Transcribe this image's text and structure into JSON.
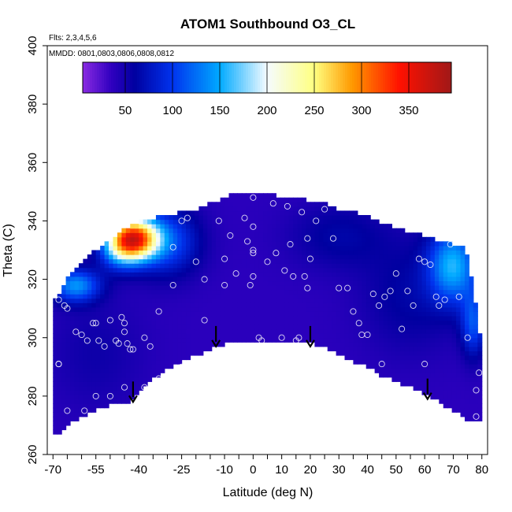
{
  "chart_data": {
    "type": "heatmap",
    "title": "ATOM1 Southbound O3_CL",
    "annotations": {
      "flights": "Flts: 2,3,4,5,6",
      "dates": "MMDD: 0801,0803,0806,0808,0812"
    },
    "xlabel": "Latitude (deg N)",
    "ylabel": "Theta (C)",
    "xlim": [
      -72,
      82
    ],
    "ylim": [
      260,
      400
    ],
    "x_ticks": [
      -70,
      -55,
      -40,
      -25,
      -10,
      0,
      10,
      20,
      30,
      40,
      50,
      60,
      70,
      80
    ],
    "y_ticks": [
      260,
      280,
      300,
      320,
      340,
      360,
      380,
      400
    ],
    "colorbar": {
      "range": [
        5,
        395
      ],
      "ticks": [
        50,
        100,
        150,
        200,
        250,
        300,
        350
      ],
      "stops": [
        {
          "value": 5,
          "color": "#8a2be2"
        },
        {
          "value": 35,
          "color": "#3000c0"
        },
        {
          "value": 60,
          "color": "#0000a0"
        },
        {
          "value": 100,
          "color": "#0033ee"
        },
        {
          "value": 150,
          "color": "#00aaff"
        },
        {
          "value": 200,
          "color": "#f5fbff"
        },
        {
          "value": 250,
          "color": "#ffff80"
        },
        {
          "value": 290,
          "color": "#ff9900"
        },
        {
          "value": 340,
          "color": "#ff1100"
        },
        {
          "value": 395,
          "color": "#a01818"
        }
      ]
    },
    "field": {
      "background": 38,
      "upper_boundary": [
        [
          -70,
          312
        ],
        [
          -65,
          320
        ],
        [
          -60,
          326
        ],
        [
          -55,
          330
        ],
        [
          -50,
          333
        ],
        [
          -45,
          337
        ],
        [
          -40,
          340
        ],
        [
          -35,
          341
        ],
        [
          -30,
          342
        ],
        [
          -25,
          343
        ],
        [
          -20,
          344
        ],
        [
          -15,
          346
        ],
        [
          -10,
          348
        ],
        [
          -5,
          350
        ],
        [
          0,
          350
        ],
        [
          5,
          350
        ],
        [
          10,
          348
        ],
        [
          15,
          348
        ],
        [
          20,
          347
        ],
        [
          25,
          346
        ],
        [
          30,
          344
        ],
        [
          35,
          343
        ],
        [
          40,
          342
        ],
        [
          45,
          339
        ],
        [
          50,
          338
        ],
        [
          55,
          336
        ],
        [
          60,
          335
        ],
        [
          65,
          333
        ],
        [
          70,
          332
        ],
        [
          74,
          331
        ],
        [
          76,
          323
        ],
        [
          78,
          310
        ],
        [
          80,
          296
        ]
      ],
      "lower_boundary": [
        [
          -70,
          266
        ],
        [
          -68,
          267
        ],
        [
          -65,
          270
        ],
        [
          -60,
          273
        ],
        [
          -55,
          275
        ],
        [
          -50,
          277
        ],
        [
          -45,
          277
        ],
        [
          -40,
          282
        ],
        [
          -35,
          286
        ],
        [
          -30,
          289
        ],
        [
          -25,
          292
        ],
        [
          -20,
          294
        ],
        [
          -15,
          296
        ],
        [
          -10,
          298
        ],
        [
          -5,
          299
        ],
        [
          0,
          299
        ],
        [
          5,
          299
        ],
        [
          10,
          299
        ],
        [
          15,
          299
        ],
        [
          20,
          298
        ],
        [
          25,
          297
        ],
        [
          30,
          294
        ],
        [
          35,
          292
        ],
        [
          40,
          290
        ],
        [
          45,
          287
        ],
        [
          50,
          285
        ],
        [
          55,
          283
        ],
        [
          60,
          281
        ],
        [
          65,
          278
        ],
        [
          70,
          275
        ],
        [
          75,
          272
        ],
        [
          80,
          272
        ]
      ],
      "blobs": [
        {
          "lat": -42,
          "theta": 334,
          "sx": 6,
          "sy": 5,
          "amp": 290
        },
        {
          "lat": -47,
          "theta": 330,
          "sx": 5,
          "sy": 5,
          "amp": 60
        },
        {
          "lat": -62,
          "theta": 318,
          "sx": 6,
          "sy": 4,
          "amp": 100
        },
        {
          "lat": -30,
          "theta": 333,
          "sx": 8,
          "sy": 8,
          "amp": 70
        },
        {
          "lat": 70,
          "theta": 325,
          "sx": 6,
          "sy": 9,
          "amp": 110
        },
        {
          "lat": 77,
          "theta": 305,
          "sx": 3,
          "sy": 8,
          "amp": 70
        },
        {
          "lat": 55,
          "theta": 315,
          "sx": 12,
          "sy": 14,
          "amp": 25
        },
        {
          "lat": 30,
          "theta": 335,
          "sx": 12,
          "sy": 8,
          "amp": 25
        },
        {
          "lat": -55,
          "theta": 295,
          "sx": 12,
          "sy": 14,
          "amp": 15
        }
      ]
    },
    "sample_points": [
      [
        -69,
        316
      ],
      [
        -68,
        313
      ],
      [
        -66,
        311
      ],
      [
        -65,
        310
      ],
      [
        -62,
        302
      ],
      [
        -60,
        301
      ],
      [
        -58,
        299
      ],
      [
        -56,
        305
      ],
      [
        -55,
        305
      ],
      [
        -54,
        299
      ],
      [
        -52,
        297
      ],
      [
        -50,
        306
      ],
      [
        -48,
        299
      ],
      [
        -47,
        298
      ],
      [
        -46,
        307
      ],
      [
        -45,
        305
      ],
      [
        -45,
        302
      ],
      [
        -44,
        298
      ],
      [
        -43,
        296
      ],
      [
        -42,
        296
      ],
      [
        -38,
        300
      ],
      [
        -36,
        297
      ],
      [
        -33,
        309
      ],
      [
        -28,
        318
      ],
      [
        -28,
        331
      ],
      [
        -25,
        340
      ],
      [
        -23,
        341
      ],
      [
        -20,
        326
      ],
      [
        -17,
        320
      ],
      [
        -17,
        306
      ],
      [
        -15,
        293
      ],
      [
        -12,
        340
      ],
      [
        -10,
        327
      ],
      [
        -10,
        318
      ],
      [
        -8,
        335
      ],
      [
        -6,
        322
      ],
      [
        -3,
        341
      ],
      [
        -2,
        333
      ],
      [
        -1,
        318
      ],
      [
        0,
        330
      ],
      [
        0,
        329
      ],
      [
        0,
        321
      ],
      [
        0,
        338
      ],
      [
        0,
        348
      ],
      [
        2,
        300
      ],
      [
        3,
        299
      ],
      [
        5,
        326
      ],
      [
        7,
        346
      ],
      [
        8,
        329
      ],
      [
        10,
        300
      ],
      [
        11,
        323
      ],
      [
        12,
        345
      ],
      [
        13,
        332
      ],
      [
        14,
        321
      ],
      [
        15,
        299
      ],
      [
        16,
        300
      ],
      [
        17,
        343
      ],
      [
        18,
        321
      ],
      [
        19,
        317
      ],
      [
        19,
        334
      ],
      [
        20,
        327
      ],
      [
        22,
        340
      ],
      [
        25,
        344
      ],
      [
        28,
        334
      ],
      [
        30,
        317
      ],
      [
        33,
        317
      ],
      [
        35,
        309
      ],
      [
        37,
        305
      ],
      [
        38,
        301
      ],
      [
        40,
        301
      ],
      [
        42,
        315
      ],
      [
        44,
        311
      ],
      [
        46,
        314
      ],
      [
        48,
        316
      ],
      [
        50,
        322
      ],
      [
        52,
        303
      ],
      [
        54,
        316
      ],
      [
        56,
        311
      ],
      [
        58,
        327
      ],
      [
        60,
        326
      ],
      [
        62,
        325
      ],
      [
        64,
        314
      ],
      [
        65,
        311
      ],
      [
        67,
        313
      ],
      [
        69,
        332
      ],
      [
        72,
        314
      ],
      [
        75,
        300
      ],
      [
        78,
        282
      ],
      [
        -65,
        275
      ],
      [
        -59,
        275
      ],
      [
        -55,
        280
      ],
      [
        -50,
        280
      ],
      [
        -45,
        283
      ],
      [
        -38,
        283
      ],
      [
        -33,
        286
      ],
      [
        -25,
        290
      ],
      [
        -68,
        291
      ],
      [
        -68,
        291
      ],
      [
        -15,
        290
      ],
      [
        -8,
        291
      ],
      [
        0,
        291
      ],
      [
        45,
        291
      ],
      [
        60,
        291
      ],
      [
        79,
        288
      ],
      [
        78,
        273
      ]
    ],
    "arrows": [
      {
        "lat": -42,
        "theta_from": 285,
        "theta_to": 278
      },
      {
        "lat": -13,
        "theta_from": 304,
        "theta_to": 297
      },
      {
        "lat": 20,
        "theta_from": 304,
        "theta_to": 297
      },
      {
        "lat": 61,
        "theta_from": 286,
        "theta_to": 279
      }
    ]
  }
}
